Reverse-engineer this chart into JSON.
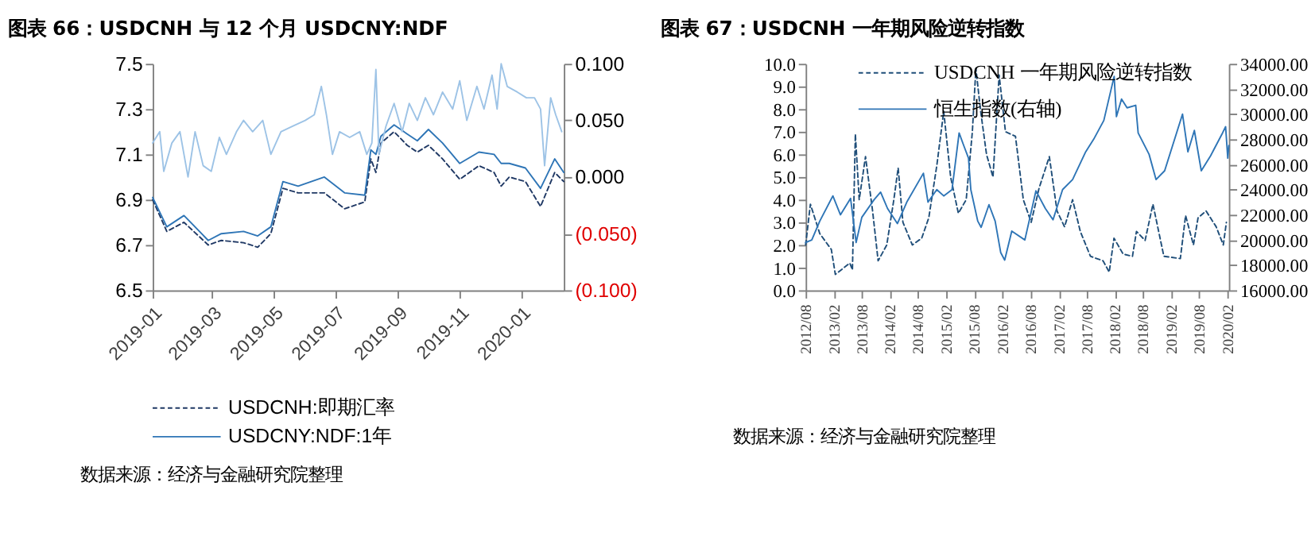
{
  "chart_data": [
    {
      "type": "line",
      "title": "图表 66：USDCNH 与 12 个月 USDCNY:NDF",
      "annotations": [
        "数据来源：经济与金融研究院整理"
      ],
      "legend": "bottom",
      "xlim": [
        "2019-01-01",
        "2020-02-12"
      ],
      "xticks": [
        {
          "value": "2019-01-01",
          "label": "2019-01"
        },
        {
          "value": "2019-03-01",
          "label": "2019-03"
        },
        {
          "value": "2019-05-01",
          "label": "2019-05"
        },
        {
          "value": "2019-07-01",
          "label": "2019-07"
        },
        {
          "value": "2019-09-01",
          "label": "2019-09"
        },
        {
          "value": "2019-11-01",
          "label": "2019-11"
        },
        {
          "value": "2020-01-01",
          "label": "2020-01"
        }
      ],
      "ylim": [
        6.5,
        7.5
      ],
      "yticks": [
        6.5,
        6.7,
        6.9,
        7.1,
        7.3,
        7.5
      ],
      "y2lim": [
        -0.1,
        0.1
      ],
      "y2ticks": [
        {
          "value": -0.1,
          "label": "(0.100)"
        },
        {
          "value": -0.05,
          "label": "(0.050)"
        },
        {
          "value": 0,
          "label": "0.000"
        },
        {
          "value": 0.05,
          "label": "0.050"
        },
        {
          "value": 0.1,
          "label": "0.100"
        }
      ],
      "series": [
        {
          "name": "USDCNH:即期汇率",
          "color": "#1f3864",
          "line_style": "dashed",
          "x": [
            "2019-01-01",
            "2019-01-15",
            "2019-02-01",
            "2019-02-25",
            "2019-03-10",
            "2019-04-01",
            "2019-04-15",
            "2019-04-28",
            "2019-05-10",
            "2019-05-25",
            "2019-06-20",
            "2019-07-10",
            "2019-07-30",
            "2019-08-05",
            "2019-08-10",
            "2019-08-15",
            "2019-08-28",
            "2019-09-10",
            "2019-09-20",
            "2019-10-01",
            "2019-10-15",
            "2019-11-01",
            "2019-11-20",
            "2019-12-05",
            "2019-12-12",
            "2019-12-20",
            "2020-01-05",
            "2020-01-20",
            "2020-02-03",
            "2020-02-12"
          ],
          "values": [
            6.9,
            6.76,
            6.8,
            6.7,
            6.72,
            6.71,
            6.69,
            6.75,
            6.95,
            6.93,
            6.93,
            6.86,
            6.89,
            7.08,
            7.02,
            7.15,
            7.2,
            7.14,
            7.11,
            7.14,
            7.08,
            6.99,
            7.05,
            7.02,
            6.96,
            7.0,
            6.98,
            6.87,
            7.02,
            6.98
          ]
        },
        {
          "name": "USDCNY:NDF:1年",
          "color": "#2e75b6",
          "line_style": "solid",
          "x": [
            "2019-01-01",
            "2019-01-15",
            "2019-02-01",
            "2019-02-25",
            "2019-03-10",
            "2019-04-01",
            "2019-04-15",
            "2019-04-28",
            "2019-05-10",
            "2019-05-25",
            "2019-06-20",
            "2019-07-10",
            "2019-07-30",
            "2019-08-05",
            "2019-08-10",
            "2019-08-15",
            "2019-08-28",
            "2019-09-10",
            "2019-09-20",
            "2019-10-01",
            "2019-10-15",
            "2019-11-01",
            "2019-11-20",
            "2019-12-05",
            "2019-12-12",
            "2019-12-20",
            "2020-01-05",
            "2020-01-20",
            "2020-02-03",
            "2020-02-12"
          ],
          "values": [
            6.91,
            6.78,
            6.83,
            6.72,
            6.75,
            6.76,
            6.74,
            6.78,
            6.98,
            6.96,
            7.0,
            6.93,
            6.92,
            7.12,
            7.1,
            7.18,
            7.23,
            7.19,
            7.16,
            7.21,
            7.15,
            7.06,
            7.11,
            7.1,
            7.06,
            7.06,
            7.04,
            6.95,
            7.08,
            7.02
          ]
        },
        {
          "color": "#9dc3e6",
          "line_style": "solid",
          "axis": "y2",
          "x": [
            "2019-01-01",
            "2019-01-08",
            "2019-01-12",
            "2019-01-20",
            "2019-01-28",
            "2019-02-05",
            "2019-02-12",
            "2019-02-20",
            "2019-02-28",
            "2019-03-08",
            "2019-03-15",
            "2019-03-25",
            "2019-04-01",
            "2019-04-10",
            "2019-04-20",
            "2019-04-28",
            "2019-05-08",
            "2019-05-20",
            "2019-06-01",
            "2019-06-10",
            "2019-06-17",
            "2019-06-22",
            "2019-06-28",
            "2019-07-05",
            "2019-07-15",
            "2019-07-25",
            "2019-08-01",
            "2019-08-06",
            "2019-08-10",
            "2019-08-13",
            "2019-08-20",
            "2019-08-28",
            "2019-09-05",
            "2019-09-12",
            "2019-09-20",
            "2019-09-28",
            "2019-10-06",
            "2019-10-15",
            "2019-10-25",
            "2019-11-01",
            "2019-11-08",
            "2019-11-18",
            "2019-11-25",
            "2019-12-03",
            "2019-12-08",
            "2019-12-12",
            "2019-12-18",
            "2019-12-28",
            "2020-01-06",
            "2020-01-14",
            "2020-01-20",
            "2020-01-24",
            "2020-01-30",
            "2020-02-04",
            "2020-02-10"
          ],
          "values": [
            0.03,
            0.04,
            0.005,
            0.03,
            0.04,
            0.0,
            0.04,
            0.01,
            0.005,
            0.035,
            0.02,
            0.04,
            0.05,
            0.04,
            0.05,
            0.02,
            0.04,
            0.045,
            0.05,
            0.055,
            0.08,
            0.055,
            0.02,
            0.04,
            0.035,
            0.04,
            0.02,
            0.03,
            0.095,
            0.02,
            0.045,
            0.065,
            0.04,
            0.065,
            0.05,
            0.07,
            0.055,
            0.075,
            0.06,
            0.085,
            0.05,
            0.08,
            0.06,
            0.09,
            0.06,
            0.1,
            0.08,
            0.075,
            0.07,
            0.07,
            0.06,
            0.01,
            0.07,
            0.055,
            0.04
          ]
        }
      ]
    },
    {
      "type": "line",
      "title": "图表 67：USDCNH 一年期风险逆转指数",
      "annotations": [
        "数据来源：经济与金融研究院整理"
      ],
      "legend": "top",
      "xlim": [
        "2012-08-01",
        "2020-02-10"
      ],
      "xticks": [
        {
          "value": "2012-08-01",
          "label": "2012/08"
        },
        {
          "value": "2013-02-01",
          "label": "2013/02"
        },
        {
          "value": "2013-08-01",
          "label": "2013/08"
        },
        {
          "value": "2014-02-01",
          "label": "2014/02"
        },
        {
          "value": "2014-08-01",
          "label": "2014/08"
        },
        {
          "value": "2015-02-01",
          "label": "2015/02"
        },
        {
          "value": "2015-08-01",
          "label": "2015/08"
        },
        {
          "value": "2016-02-01",
          "label": "2016/02"
        },
        {
          "value": "2016-08-01",
          "label": "2016/08"
        },
        {
          "value": "2017-02-01",
          "label": "2017/02"
        },
        {
          "value": "2017-08-01",
          "label": "2017/08"
        },
        {
          "value": "2018-02-01",
          "label": "2018/02"
        },
        {
          "value": "2018-08-01",
          "label": "2018/08"
        },
        {
          "value": "2019-02-01",
          "label": "2019/02"
        },
        {
          "value": "2019-08-01",
          "label": "2019/08"
        },
        {
          "value": "2020-02-01",
          "label": "2020/02"
        }
      ],
      "ylim": [
        0,
        10
      ],
      "yticks": [
        {
          "value": 0,
          "label": "0.0"
        },
        {
          "value": 1,
          "label": "1.0"
        },
        {
          "value": 2,
          "label": "2.0"
        },
        {
          "value": 3,
          "label": "3.0"
        },
        {
          "value": 4,
          "label": "4.0"
        },
        {
          "value": 5,
          "label": "5.0"
        },
        {
          "value": 6,
          "label": "6.0"
        },
        {
          "value": 7,
          "label": "7.0"
        },
        {
          "value": 8,
          "label": "8.0"
        },
        {
          "value": 9,
          "label": "9.0"
        },
        {
          "value": 10,
          "label": "10.0"
        }
      ],
      "y2lim": [
        16000,
        34000
      ],
      "y2ticks": [
        {
          "value": 16000,
          "label": "16000.00"
        },
        {
          "value": 18000,
          "label": "18000.00"
        },
        {
          "value": 20000,
          "label": "20000.00"
        },
        {
          "value": 22000,
          "label": "22000.00"
        },
        {
          "value": 24000,
          "label": "24000.00"
        },
        {
          "value": 26000,
          "label": "26000.00"
        },
        {
          "value": 28000,
          "label": "28000.00"
        },
        {
          "value": 30000,
          "label": "30000.00"
        },
        {
          "value": 32000,
          "label": "32000.00"
        },
        {
          "value": 34000,
          "label": "34000.00"
        }
      ],
      "series": [
        {
          "name": "USDCNH 一年期风险逆转指数",
          "color": "#1f4e79",
          "line_style": "dashed",
          "x": [
            "2012-08-01",
            "2012-09-01",
            "2012-11-01",
            "2013-01-15",
            "2013-02-10",
            "2013-05-15",
            "2013-06-01",
            "2013-06-20",
            "2013-07-15",
            "2013-08-25",
            "2013-10-10",
            "2013-11-15",
            "2014-01-10",
            "2014-02-25",
            "2014-03-25",
            "2014-04-25",
            "2014-06-25",
            "2014-08-25",
            "2014-10-10",
            "2014-12-01",
            "2015-01-15",
            "2015-03-01",
            "2015-04-20",
            "2015-06-10",
            "2015-07-20",
            "2015-08-12",
            "2015-09-10",
            "2015-10-20",
            "2015-12-01",
            "2016-01-10",
            "2016-02-20",
            "2016-04-25",
            "2016-06-15",
            "2016-08-05",
            "2016-09-25",
            "2016-12-01",
            "2017-01-20",
            "2017-03-10",
            "2017-05-01",
            "2017-06-20",
            "2017-08-25",
            "2017-11-15",
            "2017-12-25",
            "2018-01-25",
            "2018-03-25",
            "2018-05-25",
            "2018-06-20",
            "2018-08-15",
            "2018-10-05",
            "2018-12-15",
            "2019-04-01",
            "2019-05-05",
            "2019-06-25",
            "2019-07-25",
            "2019-09-15",
            "2019-11-20",
            "2020-01-05",
            "2020-01-25"
          ],
          "values": [
            2.0,
            3.8,
            2.5,
            1.8,
            0.7,
            1.2,
            0.9,
            6.9,
            4.0,
            5.9,
            3.5,
            1.3,
            2.0,
            4.0,
            5.4,
            3.0,
            2.0,
            2.3,
            3.2,
            5.5,
            7.9,
            5.0,
            3.4,
            4.0,
            7.0,
            9.8,
            8.0,
            6.0,
            5.0,
            9.5,
            7.0,
            6.8,
            4.0,
            3.0,
            4.5,
            5.9,
            3.5,
            2.8,
            4.0,
            2.6,
            1.5,
            1.3,
            0.8,
            2.3,
            1.6,
            1.5,
            2.6,
            2.2,
            3.8,
            1.5,
            1.4,
            3.3,
            2.0,
            3.2,
            3.5,
            2.8,
            2.0,
            3.0
          ]
        },
        {
          "name": "恒生指数(右轴)",
          "color": "#2e75b6",
          "line_style": "solid",
          "axis": "y2",
          "x": [
            "2012-08-01",
            "2012-09-10",
            "2012-11-01",
            "2013-01-25",
            "2013-03-15",
            "2013-05-20",
            "2013-06-25",
            "2013-08-01",
            "2013-10-20",
            "2013-12-01",
            "2014-01-15",
            "2014-03-20",
            "2014-05-20",
            "2014-09-05",
            "2014-10-05",
            "2014-12-01",
            "2015-01-15",
            "2015-03-10",
            "2015-04-25",
            "2015-05-25",
            "2015-06-25",
            "2015-07-10",
            "2015-08-24",
            "2015-09-15",
            "2015-11-05",
            "2015-12-15",
            "2016-01-20",
            "2016-02-15",
            "2016-04-01",
            "2016-06-25",
            "2016-09-05",
            "2016-11-05",
            "2016-12-25",
            "2017-02-25",
            "2017-05-01",
            "2017-07-25",
            "2017-09-15",
            "2017-11-20",
            "2018-01-26",
            "2018-02-10",
            "2018-03-15",
            "2018-04-20",
            "2018-06-15",
            "2018-07-01",
            "2018-09-10",
            "2018-10-25",
            "2018-12-20",
            "2019-04-15",
            "2019-05-20",
            "2019-07-01",
            "2019-08-15",
            "2019-10-15",
            "2019-12-31",
            "2020-01-20",
            "2020-02-03",
            "2020-02-10"
          ],
          "values": [
            19800,
            20000,
            21500,
            23500,
            22000,
            23300,
            19800,
            21800,
            23200,
            23800,
            22500,
            21300,
            23000,
            25300,
            23000,
            24000,
            23500,
            24000,
            28500,
            27500,
            26500,
            24000,
            21500,
            21000,
            22800,
            21500,
            19000,
            18400,
            20700,
            20000,
            23900,
            22500,
            21600,
            24000,
            24800,
            27000,
            28000,
            29500,
            33000,
            29800,
            31200,
            30500,
            30700,
            28500,
            26800,
            24800,
            25500,
            30000,
            27000,
            28700,
            25500,
            26700,
            28500,
            29000,
            26500,
            27500
          ]
        }
      ]
    }
  ]
}
